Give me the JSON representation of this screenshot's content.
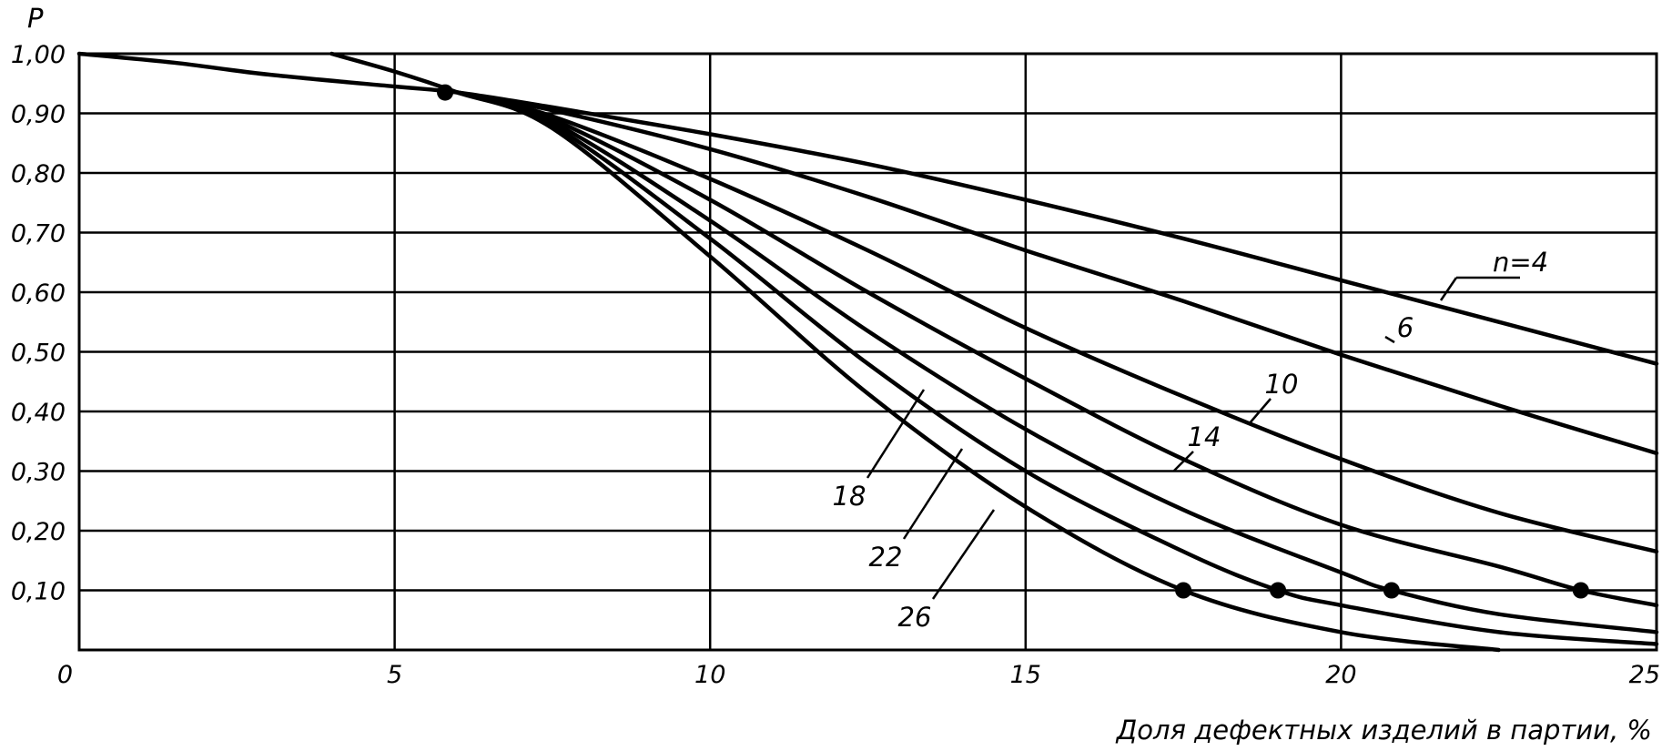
{
  "chart_data": {
    "type": "line",
    "title": "",
    "ylabel": "P",
    "xlabel": "Доля дефектных изделий в партии, %",
    "xlim": [
      0,
      25
    ],
    "ylim": [
      0,
      1.0
    ],
    "x_ticks": [
      "0",
      "5",
      "10",
      "15",
      "20",
      "25"
    ],
    "y_ticks": [
      "1,00",
      "0,90",
      "0,80",
      "0,70",
      "0,60",
      "0,50",
      "0,40",
      "0,30",
      "0,20",
      "0,10"
    ],
    "grid": true,
    "series": [
      {
        "name": "n=4",
        "x": [
          0,
          1.5,
          3,
          5,
          6,
          7.5,
          10,
          12.5,
          15,
          17.5,
          20,
          22.5,
          25
        ],
        "y": [
          1.0,
          0.985,
          0.965,
          0.945,
          0.935,
          0.91,
          0.865,
          0.815,
          0.755,
          0.69,
          0.62,
          0.55,
          0.48
        ]
      },
      {
        "name": "6",
        "x": [
          6,
          7.5,
          10,
          12.5,
          15,
          17.5,
          20,
          22.5,
          25
        ],
        "y": [
          0.935,
          0.905,
          0.84,
          0.76,
          0.67,
          0.585,
          0.495,
          0.41,
          0.33
        ]
      },
      {
        "name": "10",
        "x": [
          6,
          7.5,
          10,
          12.5,
          15,
          17.5,
          20,
          22.5,
          25
        ],
        "y": [
          0.935,
          0.895,
          0.79,
          0.67,
          0.54,
          0.425,
          0.32,
          0.23,
          0.165
        ]
      },
      {
        "name": "14",
        "x": [
          6,
          7.5,
          10,
          12.5,
          15,
          17.5,
          20,
          22.5,
          23.8,
          25
        ],
        "y": [
          0.935,
          0.89,
          0.755,
          0.6,
          0.455,
          0.32,
          0.21,
          0.14,
          0.1,
          0.075
        ]
      },
      {
        "name": "18",
        "x": [
          6,
          7.5,
          10,
          12.5,
          15,
          17.5,
          20,
          20.8,
          22.5,
          25
        ],
        "y": [
          0.935,
          0.885,
          0.72,
          0.535,
          0.37,
          0.235,
          0.13,
          0.1,
          0.06,
          0.03
        ]
      },
      {
        "name": "22",
        "x": [
          6,
          7.5,
          10,
          12.5,
          15,
          17.5,
          19,
          20,
          22.5,
          25
        ],
        "y": [
          0.935,
          0.88,
          0.69,
          0.48,
          0.3,
          0.165,
          0.1,
          0.075,
          0.03,
          0.01
        ]
      },
      {
        "name": "26",
        "x": [
          4,
          5,
          6,
          7.5,
          10,
          12.5,
          15,
          17.5,
          20,
          22.5
        ],
        "y": [
          1.0,
          0.97,
          0.935,
          0.875,
          0.66,
          0.43,
          0.24,
          0.1,
          0.03,
          0.0
        ]
      }
    ],
    "markers": [
      {
        "x": 5.8,
        "y": 0.935
      },
      {
        "x": 17.5,
        "y": 0.1
      },
      {
        "x": 19.0,
        "y": 0.1
      },
      {
        "x": 20.8,
        "y": 0.1
      },
      {
        "x": 23.8,
        "y": 0.1
      }
    ],
    "curve_labels": [
      {
        "text": "n=4",
        "series": "n=4"
      },
      {
        "text": "6",
        "series": "6"
      },
      {
        "text": "10",
        "series": "10"
      },
      {
        "text": "14",
        "series": "14"
      },
      {
        "text": "18",
        "series": "18"
      },
      {
        "text": "22",
        "series": "22"
      },
      {
        "text": "26",
        "series": "26"
      }
    ]
  }
}
